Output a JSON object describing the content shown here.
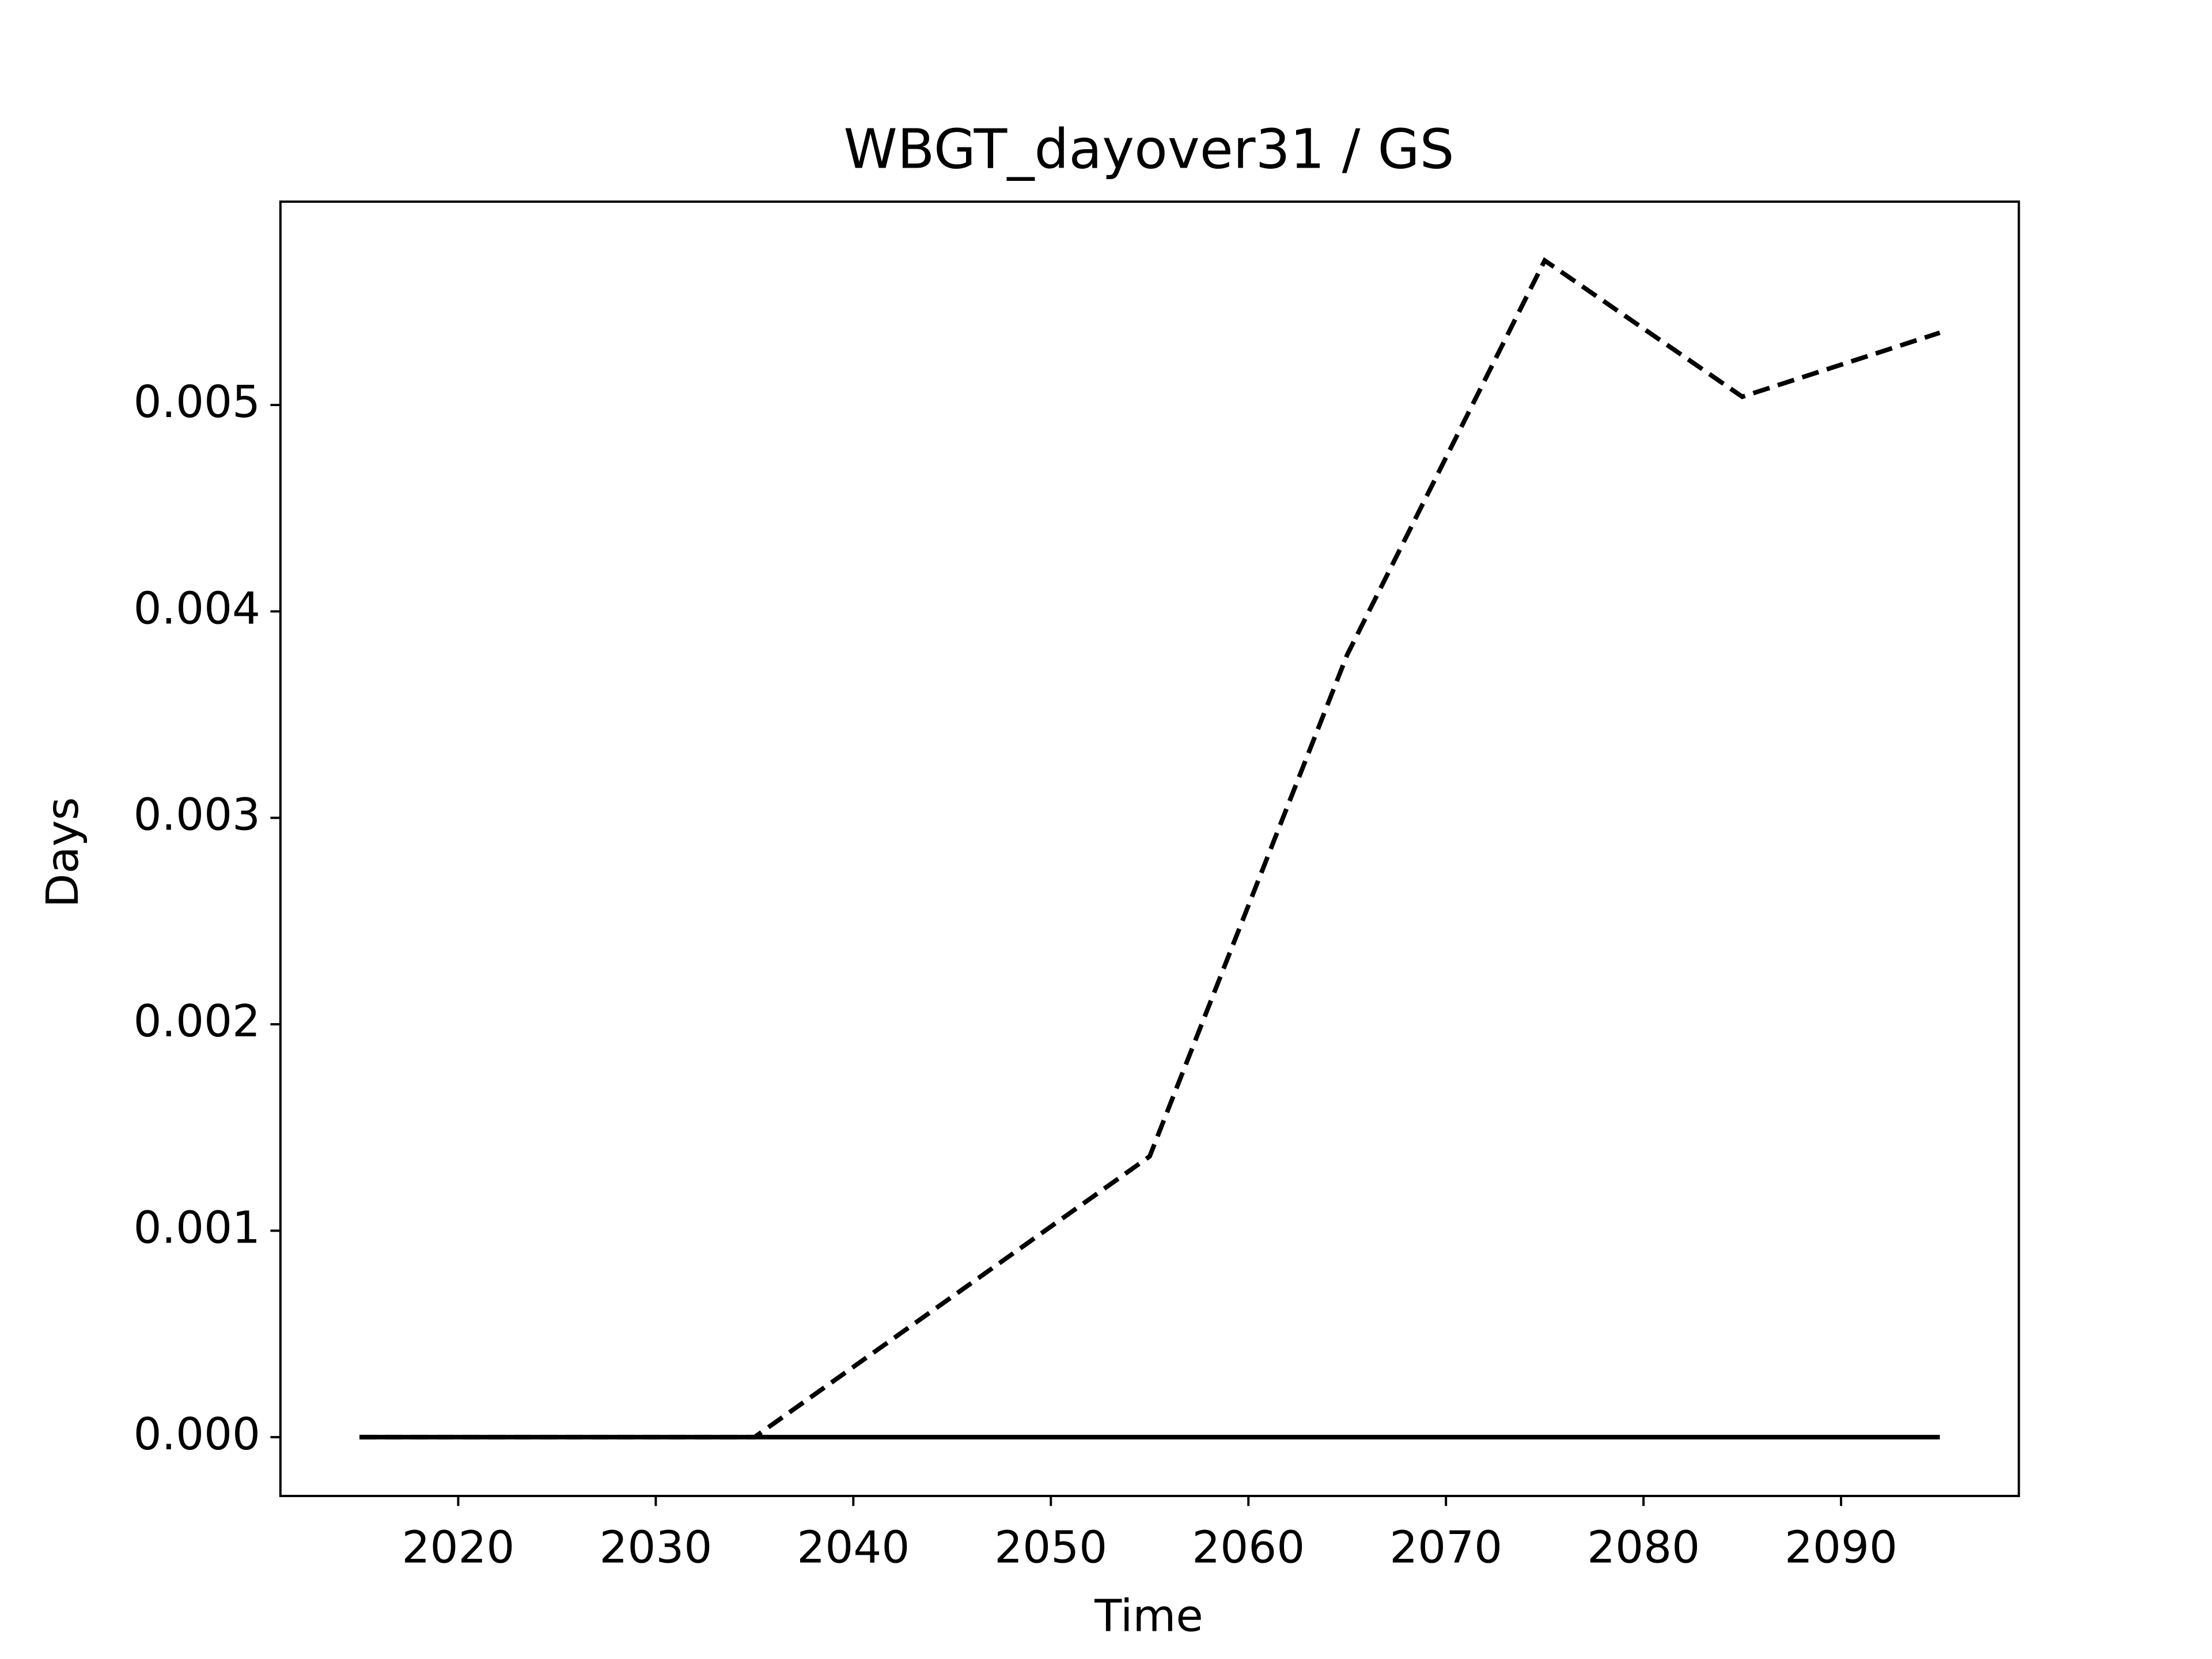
{
  "chart_data": {
    "type": "line",
    "title": "WBGT_dayover31 / GS",
    "x_label": "Time",
    "y_label": "Days",
    "x": [
      2015,
      2025,
      2035,
      2045,
      2055,
      2065,
      2075,
      2085,
      2095
    ],
    "series": [
      {
        "color": "#000000",
        "dash": true,
        "values": [
          0,
          0,
          0,
          0.00068,
          0.00136,
          0.00379,
          0.0057,
          0.00504,
          0.00535
        ]
      },
      {
        "color": "#000000",
        "dash": false,
        "values": [
          0,
          0,
          0,
          0,
          0,
          0,
          0,
          0,
          0
        ]
      }
    ],
    "xlim": [
      2011,
      2099
    ],
    "xticks": [
      2020,
      2030,
      2040,
      2050,
      2060,
      2070,
      2080,
      2090
    ],
    "ylim": [
      -0.000285,
      0.005985
    ],
    "yticks": [
      {
        "value": 0,
        "label": "0.000"
      },
      0.001,
      0.002,
      0.003,
      0.004,
      0.005
    ],
    "grid": false
  }
}
